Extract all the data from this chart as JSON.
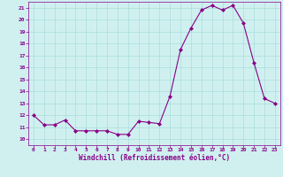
{
  "x": [
    0,
    1,
    2,
    3,
    4,
    5,
    6,
    7,
    8,
    9,
    10,
    11,
    12,
    13,
    14,
    15,
    16,
    17,
    18,
    19,
    20,
    21,
    22,
    23
  ],
  "y": [
    12.0,
    11.2,
    11.2,
    11.6,
    10.7,
    10.7,
    10.7,
    10.7,
    10.4,
    10.4,
    11.5,
    11.4,
    11.3,
    13.6,
    17.5,
    19.3,
    20.8,
    21.2,
    20.8,
    21.2,
    19.7,
    16.4,
    13.4,
    13.0
  ],
  "line_color": "#880088",
  "marker": "D",
  "marker_size": 2,
  "bg_color": "#d0f0f0",
  "grid_color": "#aadddd",
  "xlabel": "Windchill (Refroidissement éolien,°C)",
  "xlabel_color": "#880088",
  "tick_color": "#880088",
  "ylim": [
    9.5,
    21.5
  ],
  "yticks": [
    10,
    11,
    12,
    13,
    14,
    15,
    16,
    17,
    18,
    19,
    20,
    21
  ],
  "xlim": [
    -0.5,
    23.5
  ],
  "xticks": [
    0,
    1,
    2,
    3,
    4,
    5,
    6,
    7,
    8,
    9,
    10,
    11,
    12,
    13,
    14,
    15,
    16,
    17,
    18,
    19,
    20,
    21,
    22,
    23
  ]
}
